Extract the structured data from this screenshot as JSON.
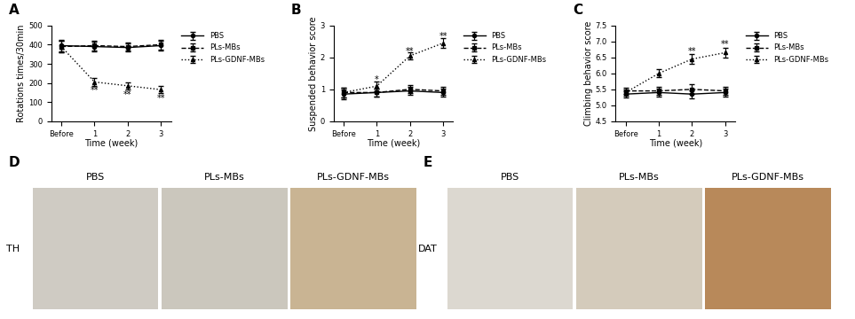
{
  "chart_data": [
    {
      "type": "line",
      "panel_label": "A",
      "x_label": "Time (week)",
      "y_label": "Rotations times/30min",
      "categories": [
        "Before",
        "1",
        "2",
        "3"
      ],
      "ylim": [
        0,
        500
      ],
      "yticks": [
        0,
        100,
        200,
        300,
        400,
        500
      ],
      "legend": "upper left",
      "series": [
        {
          "name": "PBS",
          "color": "#000000",
          "marker": "circle",
          "line_style": "solid",
          "values": [
            395,
            390,
            385,
            395
          ],
          "errors": [
            30,
            25,
            20,
            25
          ]
        },
        {
          "name": "PLs-MBs",
          "color": "#000000",
          "marker": "square",
          "line_style": "dashed",
          "values": [
            390,
            395,
            390,
            400
          ],
          "errors": [
            30,
            25,
            20,
            25
          ]
        },
        {
          "name": "PLs-GDNF-MBs",
          "color": "#000000",
          "marker": "triangle",
          "line_style": "dotted",
          "values": [
            390,
            205,
            185,
            165
          ],
          "errors": [
            30,
            20,
            20,
            20
          ]
        }
      ],
      "annotations": [
        {
          "x": "1",
          "y": 160,
          "text": "**"
        },
        {
          "x": "2",
          "y": 140,
          "text": "**"
        },
        {
          "x": "3",
          "y": 120,
          "text": "**"
        }
      ]
    },
    {
      "type": "line",
      "panel_label": "B",
      "x_label": "Time (week)",
      "y_label": "Suspended behavior score",
      "categories": [
        "Before",
        "1",
        "2",
        "3"
      ],
      "ylim": [
        0,
        3
      ],
      "yticks": [
        0,
        1,
        2,
        3
      ],
      "legend": "upper left",
      "series": [
        {
          "name": "PBS",
          "color": "#000000",
          "marker": "circle",
          "line_style": "solid",
          "values": [
            0.85,
            0.9,
            0.95,
            0.9
          ],
          "errors": [
            0.15,
            0.12,
            0.12,
            0.12
          ]
        },
        {
          "name": "PLs-MBs",
          "color": "#000000",
          "marker": "square",
          "line_style": "dashed",
          "values": [
            0.9,
            0.9,
            1.0,
            0.95
          ],
          "errors": [
            0.15,
            0.12,
            0.12,
            0.12
          ]
        },
        {
          "name": "PLs-GDNF-MBs",
          "color": "#000000",
          "marker": "triangle",
          "line_style": "dotted",
          "values": [
            0.9,
            1.1,
            2.05,
            2.45
          ],
          "errors": [
            0.15,
            0.15,
            0.1,
            0.15
          ]
        }
      ],
      "annotations": [
        {
          "x": "1",
          "y": 1.3,
          "text": "*"
        },
        {
          "x": "2",
          "y": 2.2,
          "text": "**"
        },
        {
          "x": "3",
          "y": 2.65,
          "text": "**"
        }
      ]
    },
    {
      "type": "line",
      "panel_label": "C",
      "x_label": "Time (week)",
      "y_label": "Climbing behavior score",
      "categories": [
        "Before",
        "1",
        "2",
        "3"
      ],
      "ylim": [
        4.5,
        7.5
      ],
      "yticks": [
        {
          "value": 4.5,
          "label": "4.5"
        },
        {
          "value": 5,
          "label": "5.0"
        },
        {
          "value": 5.5,
          "label": "5.5"
        },
        {
          "value": 6,
          "label": "6.0"
        },
        {
          "value": 6.5,
          "label": "6.5"
        },
        {
          "value": 7,
          "label": "7.0"
        },
        {
          "value": 7.5,
          "label": "7.5"
        }
      ],
      "legend": "upper left",
      "series": [
        {
          "name": "PBS",
          "color": "#000000",
          "marker": "circle",
          "line_style": "solid",
          "values": [
            5.35,
            5.4,
            5.35,
            5.4
          ],
          "errors": [
            0.1,
            0.12,
            0.12,
            0.12
          ]
        },
        {
          "name": "PLs-MBs",
          "color": "#000000",
          "marker": "square",
          "line_style": "dashed",
          "values": [
            5.45,
            5.45,
            5.5,
            5.45
          ],
          "errors": [
            0.1,
            0.12,
            0.15,
            0.12
          ]
        },
        {
          "name": "PLs-GDNF-MBs",
          "color": "#000000",
          "marker": "triangle",
          "line_style": "dotted",
          "values": [
            5.4,
            6.0,
            6.45,
            6.65
          ],
          "errors": [
            0.1,
            0.12,
            0.15,
            0.15
          ]
        }
      ],
      "annotations": [
        {
          "x": "2",
          "y": 6.7,
          "text": "**"
        },
        {
          "x": "3",
          "y": 6.9,
          "text": "**"
        }
      ]
    }
  ],
  "image_panels": [
    {
      "panel_label": "D",
      "stain": "TH",
      "images": [
        "PBS",
        "PLs-MBs",
        "PLs-GDNF-MBs"
      ]
    },
    {
      "panel_label": "E",
      "stain": "DAT",
      "images": [
        "PBS",
        "PLs-MBs",
        "PLs-GDNF-MBs"
      ]
    }
  ]
}
